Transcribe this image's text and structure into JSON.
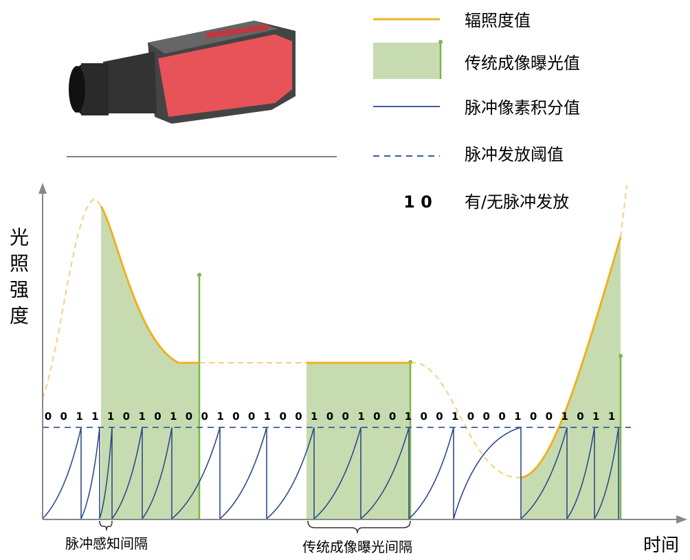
{
  "legend": [
    {
      "label": "辐照度值"
    },
    {
      "label": "传统成像曝光值"
    },
    {
      "label": "脉冲像素积分值"
    },
    {
      "label": "脉冲发放阈值"
    },
    {
      "symbol": "1 0",
      "label": "有/无脉冲发放"
    }
  ],
  "y_axis_label": "光照强度",
  "x_axis_label": "时间",
  "bits": [
    "0",
    "0",
    "1",
    "1",
    "1",
    "0",
    "1",
    "0",
    "1",
    "0",
    "0",
    "1",
    "0",
    "0",
    "1",
    "0",
    "0",
    "1",
    "0",
    "0",
    "1",
    "0",
    "0",
    "1",
    "0",
    "0",
    "1",
    "0",
    "0",
    "0",
    "1",
    "0",
    "0",
    "1",
    "0",
    "1",
    "1"
  ],
  "annotations": [
    "脉冲感知间隔",
    "传统成像曝光间隔"
  ]
}
